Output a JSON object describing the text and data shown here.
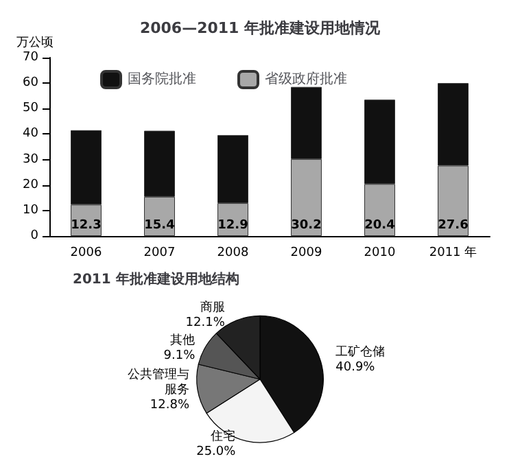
{
  "chart_data": [
    {
      "type": "bar",
      "title": "2006—2011 年批准建设用地情况",
      "ylabel": "万公顷",
      "categories": [
        "2006",
        "2007",
        "2008",
        "2009",
        "2010",
        "2011 年"
      ],
      "stacked": true,
      "series": [
        {
          "name": "省级政府批准",
          "color": "#a8a8a8",
          "values": [
            12.3,
            15.4,
            12.9,
            30.2,
            20.4,
            27.6
          ],
          "value_labels": [
            "12.3",
            "15.4",
            "12.9",
            "30.2",
            "20.4",
            "27.6"
          ]
        },
        {
          "name": "国务院批准",
          "color": "#111111",
          "values": [
            29.2,
            25.9,
            26.7,
            28.3,
            33.1,
            32.4
          ]
        }
      ],
      "ylim": [
        0,
        70
      ],
      "yticks": [
        0,
        10,
        20,
        30,
        40,
        50,
        60,
        70
      ],
      "grid": false,
      "legend": "top left"
    },
    {
      "type": "pie",
      "title": "2011 年批准建设用地结构",
      "categories": [
        "工矿仓储",
        "住宅",
        "公共管理与服务",
        "其他",
        "商服"
      ],
      "values": [
        40.9,
        25.0,
        12.8,
        9.1,
        12.1
      ],
      "colors": [
        "#111111",
        "#f4f4f4",
        "#777777",
        "#555555",
        "#222222"
      ],
      "value_labels": [
        "40.9%",
        "25.0%",
        "12.8%",
        "9.1%",
        "12.1%"
      ]
    }
  ]
}
